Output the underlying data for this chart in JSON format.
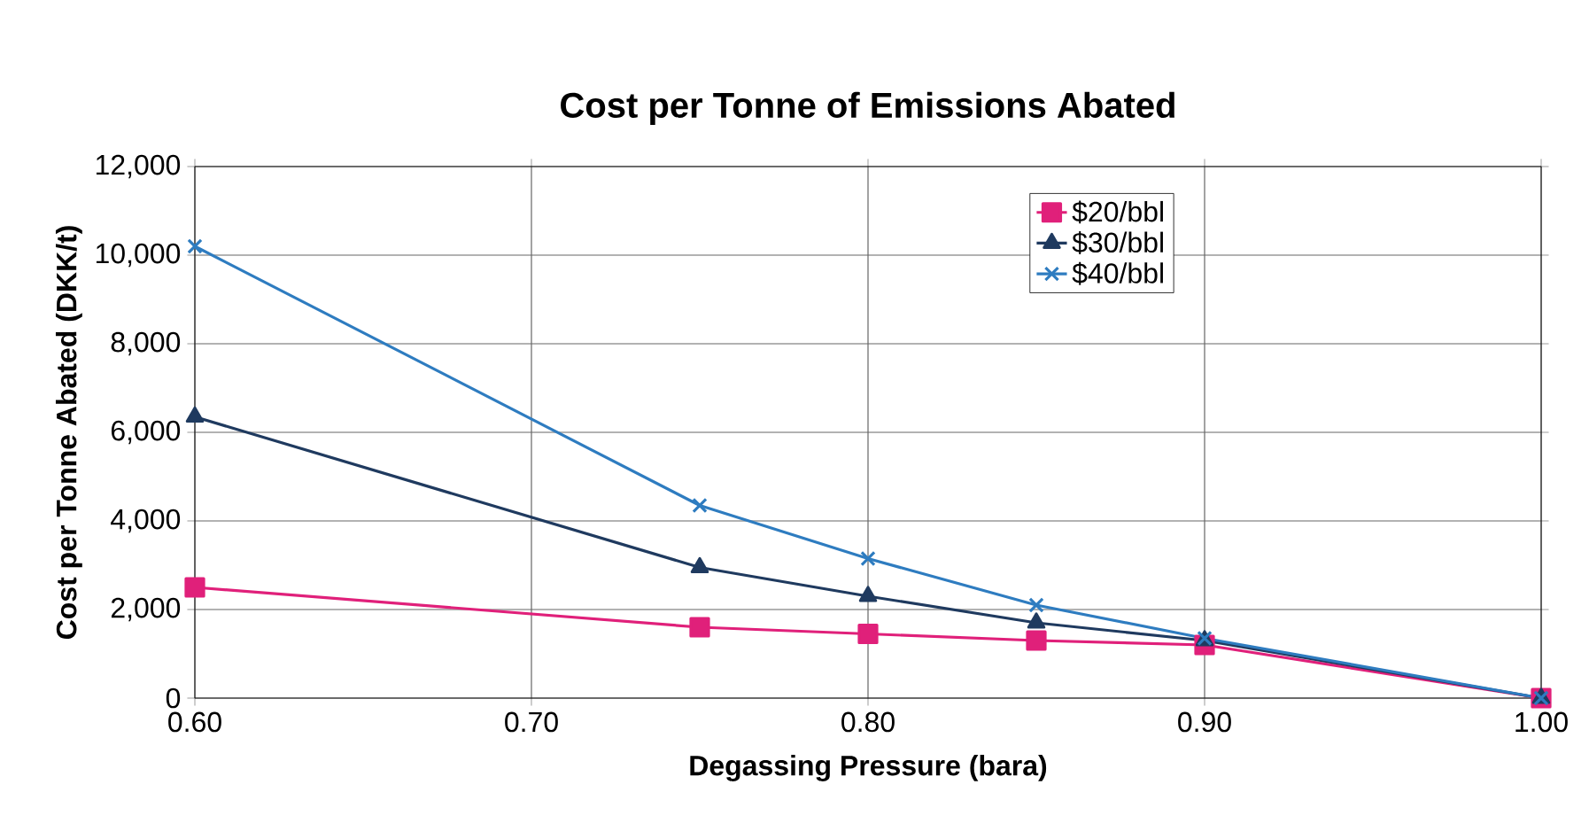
{
  "chart_data": {
    "type": "line",
    "title": "Cost per Tonne of Emissions Abated",
    "xlabel": "Degassing Pressure (bara)",
    "ylabel": "Cost per Tonne Abated (DKK/t)",
    "x": [
      0.6,
      0.75,
      0.8,
      0.85,
      0.9,
      1.0
    ],
    "series": [
      {
        "name": "$20/bbl",
        "color": "#e0207a",
        "marker": "square",
        "values": [
          2500,
          1600,
          1450,
          1300,
          1200,
          0
        ]
      },
      {
        "name": "$30/bbl",
        "color": "#1f3a5f",
        "marker": "triangle",
        "values": [
          6350,
          2950,
          2300,
          1700,
          1300,
          0
        ]
      },
      {
        "name": "$40/bbl",
        "color": "#2e7cc0",
        "marker": "cross",
        "values": [
          10200,
          4350,
          3150,
          2100,
          1350,
          0
        ]
      }
    ],
    "xlim": [
      0.6,
      1.0
    ],
    "xticks": [
      {
        "value": 0.6,
        "label": "0.60"
      },
      {
        "value": 0.7,
        "label": "0.70"
      },
      {
        "value": 0.8,
        "label": "0.80"
      },
      {
        "value": 0.9,
        "label": "0.90"
      },
      {
        "value": 1.0,
        "label": "1.00"
      }
    ],
    "ylim": [
      0,
      12000
    ],
    "yticks": [
      {
        "value": 0,
        "label": "0"
      },
      {
        "value": 2000,
        "label": "2,000"
      },
      {
        "value": 4000,
        "label": "4,000"
      },
      {
        "value": 6000,
        "label": "6,000"
      },
      {
        "value": 8000,
        "label": "8,000"
      },
      {
        "value": 10000,
        "label": "10,000"
      },
      {
        "value": 12000,
        "label": "12,000"
      }
    ],
    "grid": true,
    "legend": "top right",
    "line_style": "solid"
  }
}
